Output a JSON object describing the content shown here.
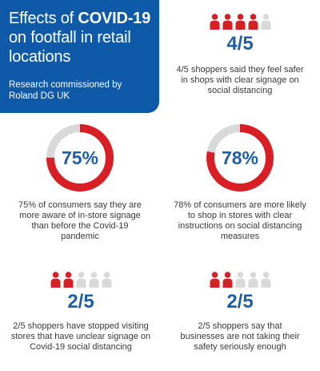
{
  "colors": {
    "brand_blue": "#0f5aa8",
    "accent_red": "#d91f26",
    "neutral_gray": "#d9d9d9",
    "number_blue": "#1f5fa8"
  },
  "header": {
    "title_part1": "Effects of ",
    "title_strong": "COVID-19",
    "title_part2": "on footfall in retail locations",
    "subtitle": "Research commissioned by Roland DG UK"
  },
  "stats": {
    "signage_safety": {
      "icon": "person-icon",
      "filled": 4,
      "total": 5,
      "value": "4/5",
      "text": "4/5 shoppers said they feel safer in shops with clear signage on social distancing"
    },
    "aware_signage": {
      "percent": 75,
      "label": "75%",
      "text": "75% of consumers say they are more aware of in-store signage than before the Covid-19 pandemic"
    },
    "likely_shop": {
      "percent": 78,
      "label": "78%",
      "text": "78% of consumers are more likely to shop in stores with clear instructions on social distancing measures"
    },
    "stopped_visiting": {
      "icon": "person-icon",
      "filled": 2,
      "total": 5,
      "value": "2/5",
      "text": "2/5 shoppers have stopped visiting stores that have unclear signage on Covid-19 social distancing"
    },
    "not_serious": {
      "icon": "person-icon",
      "filled": 2,
      "total": 5,
      "value": "2/5",
      "text": "2/5 shoppers say that businesses are not taking their safety seriously enough"
    }
  }
}
